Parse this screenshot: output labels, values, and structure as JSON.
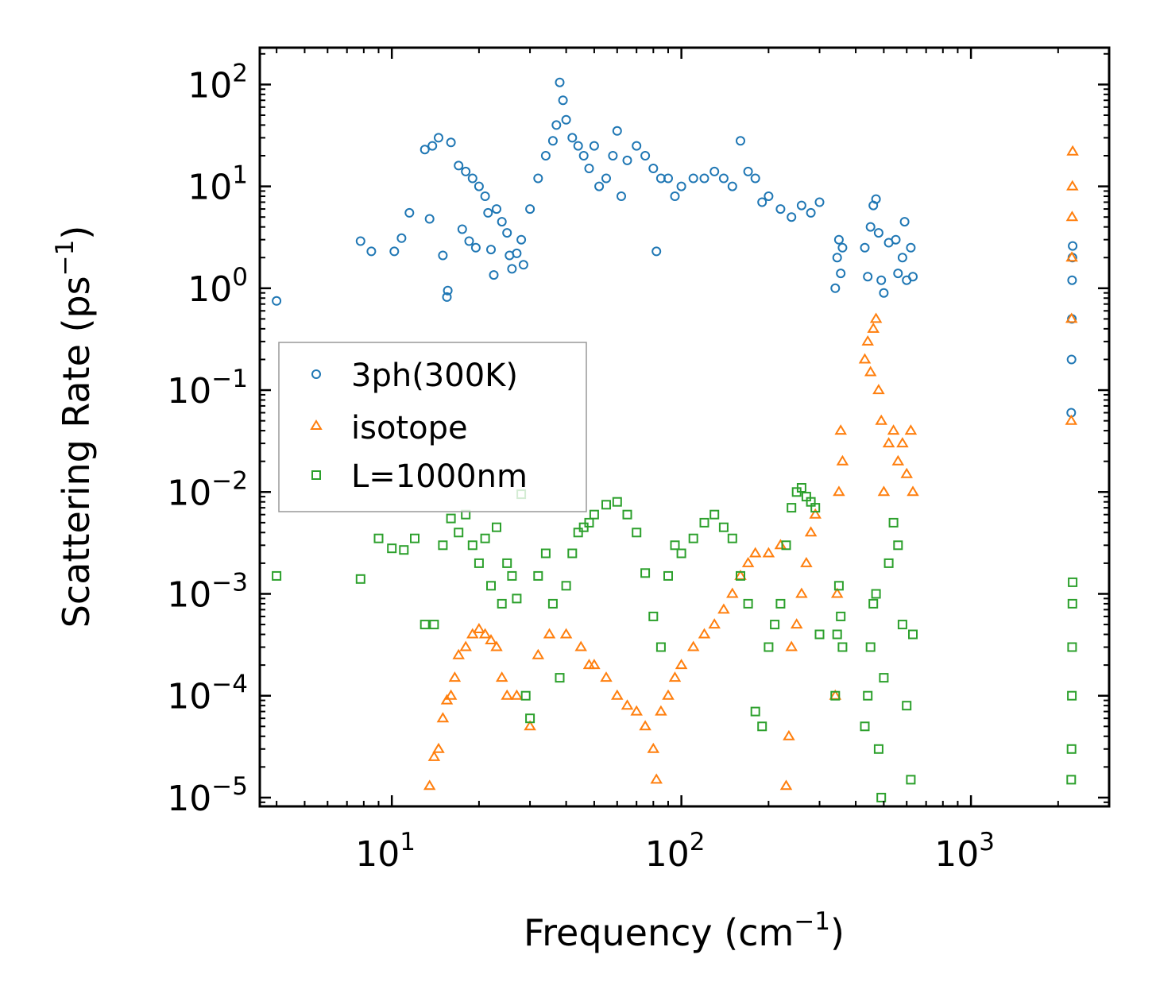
{
  "chart_data": {
    "type": "scatter",
    "title": "",
    "xlabel": "Frequency (cm",
    "xlabel_sup": "−1",
    "xlabel_end": ")",
    "ylabel": "Scattering Rate (ps",
    "ylabel_sup": "−1",
    "ylabel_end": ")",
    "xscale": "log",
    "yscale": "log",
    "xlim": [
      3.5,
      3000
    ],
    "ylim": [
      8.2e-06,
      230
    ],
    "x_ticks": [
      {
        "value": 10,
        "base": "10",
        "exp": "1"
      },
      {
        "value": 100,
        "base": "10",
        "exp": "2"
      },
      {
        "value": 1000,
        "base": "10",
        "exp": "3"
      }
    ],
    "y_ticks": [
      {
        "value": 100,
        "base": "10",
        "exp": "2"
      },
      {
        "value": 10,
        "base": "10",
        "exp": "1"
      },
      {
        "value": 1,
        "base": "10",
        "exp": "0"
      },
      {
        "value": 0.1,
        "base": "10",
        "exp": "−1"
      },
      {
        "value": 0.01,
        "base": "10",
        "exp": "−2"
      },
      {
        "value": 0.001,
        "base": "10",
        "exp": "−3"
      },
      {
        "value": 0.0001,
        "base": "10",
        "exp": "−4"
      },
      {
        "value": 1e-05,
        "base": "10",
        "exp": "−5"
      }
    ],
    "legend_position": "center-left",
    "series": [
      {
        "name": "3ph(300K)",
        "marker": "circle",
        "color": "#1f77b4",
        "points": [
          [
            4,
            0.75
          ],
          [
            7.8,
            2.9
          ],
          [
            8.5,
            2.3
          ],
          [
            10.2,
            2.3
          ],
          [
            10.8,
            3.1
          ],
          [
            11.5,
            5.5
          ],
          [
            13,
            23
          ],
          [
            13.5,
            4.8
          ],
          [
            13.8,
            25
          ],
          [
            14.5,
            30
          ],
          [
            15,
            2.1
          ],
          [
            15.5,
            0.82
          ],
          [
            15.6,
            0.95
          ],
          [
            16,
            27
          ],
          [
            17,
            16
          ],
          [
            17.5,
            3.8
          ],
          [
            18,
            14
          ],
          [
            18.5,
            2.9
          ],
          [
            19,
            12
          ],
          [
            19.5,
            2.5
          ],
          [
            20,
            10
          ],
          [
            21,
            8
          ],
          [
            21.5,
            5.5
          ],
          [
            22,
            2.4
          ],
          [
            22.5,
            1.35
          ],
          [
            23,
            6
          ],
          [
            24,
            4.5
          ],
          [
            25,
            3.5
          ],
          [
            25.5,
            2.1
          ],
          [
            26,
            1.55
          ],
          [
            27,
            2.2
          ],
          [
            28,
            3
          ],
          [
            28.5,
            1.7
          ],
          [
            30,
            6
          ],
          [
            32,
            12
          ],
          [
            34,
            20
          ],
          [
            36,
            28
          ],
          [
            37,
            40
          ],
          [
            38,
            105
          ],
          [
            39,
            70
          ],
          [
            40,
            45
          ],
          [
            42,
            30
          ],
          [
            44,
            25
          ],
          [
            46,
            20
          ],
          [
            48,
            15
          ],
          [
            50,
            25
          ],
          [
            52,
            10
          ],
          [
            55,
            12
          ],
          [
            58,
            20
          ],
          [
            60,
            35
          ],
          [
            62,
            8
          ],
          [
            65,
            18
          ],
          [
            70,
            25
          ],
          [
            75,
            20
          ],
          [
            80,
            15
          ],
          [
            82,
            2.3
          ],
          [
            85,
            12
          ],
          [
            90,
            12
          ],
          [
            95,
            8
          ],
          [
            100,
            10
          ],
          [
            110,
            12
          ],
          [
            120,
            12
          ],
          [
            130,
            14
          ],
          [
            140,
            12
          ],
          [
            150,
            10
          ],
          [
            160,
            28
          ],
          [
            170,
            14
          ],
          [
            180,
            12
          ],
          [
            190,
            7
          ],
          [
            200,
            8
          ],
          [
            220,
            6
          ],
          [
            240,
            5
          ],
          [
            260,
            6.5
          ],
          [
            280,
            5.5
          ],
          [
            300,
            7
          ],
          [
            340,
            1.0
          ],
          [
            345,
            2.0
          ],
          [
            350,
            3.0
          ],
          [
            355,
            1.4
          ],
          [
            360,
            2.5
          ],
          [
            430,
            2.5
          ],
          [
            440,
            1.3
          ],
          [
            450,
            4
          ],
          [
            460,
            6.5
          ],
          [
            470,
            7.5
          ],
          [
            480,
            3.5
          ],
          [
            490,
            1.2
          ],
          [
            500,
            0.9
          ],
          [
            520,
            2.8
          ],
          [
            550,
            3.0
          ],
          [
            560,
            1.4
          ],
          [
            580,
            2.0
          ],
          [
            590,
            4.5
          ],
          [
            600,
            1.2
          ],
          [
            620,
            2.5
          ],
          [
            630,
            1.3
          ],
          [
            2220,
            0.06
          ],
          [
            2225,
            0.2
          ],
          [
            2230,
            0.5
          ],
          [
            2235,
            1.2
          ],
          [
            2240,
            2.0
          ],
          [
            2245,
            2.6
          ]
        ]
      },
      {
        "name": "isotope",
        "marker": "triangle",
        "color": "#ff7f0e",
        "points": [
          [
            13.5,
            1.3e-05
          ],
          [
            14,
            2.5e-05
          ],
          [
            14.5,
            3e-05
          ],
          [
            15,
            6e-05
          ],
          [
            15.5,
            9e-05
          ],
          [
            16,
            0.0001
          ],
          [
            16.5,
            0.00015
          ],
          [
            17,
            0.00025
          ],
          [
            18,
            0.0003
          ],
          [
            19,
            0.0004
          ],
          [
            20,
            0.00045
          ],
          [
            21,
            0.0004
          ],
          [
            22,
            0.00035
          ],
          [
            23,
            0.0003
          ],
          [
            24,
            0.00015
          ],
          [
            25,
            0.0001
          ],
          [
            27,
            0.0001
          ],
          [
            30,
            5e-05
          ],
          [
            32,
            0.00025
          ],
          [
            35,
            0.0004
          ],
          [
            40,
            0.0004
          ],
          [
            45,
            0.0003
          ],
          [
            48,
            0.0002
          ],
          [
            50,
            0.0002
          ],
          [
            55,
            0.00015
          ],
          [
            60,
            0.0001
          ],
          [
            65,
            8e-05
          ],
          [
            70,
            7e-05
          ],
          [
            75,
            5e-05
          ],
          [
            80,
            3e-05
          ],
          [
            82,
            1.5e-05
          ],
          [
            85,
            7e-05
          ],
          [
            90,
            0.0001
          ],
          [
            95,
            0.00015
          ],
          [
            100,
            0.0002
          ],
          [
            110,
            0.0003
          ],
          [
            120,
            0.0004
          ],
          [
            130,
            0.0005
          ],
          [
            140,
            0.0007
          ],
          [
            150,
            0.001
          ],
          [
            160,
            0.0015
          ],
          [
            170,
            0.002
          ],
          [
            180,
            0.0025
          ],
          [
            200,
            0.0025
          ],
          [
            220,
            0.003
          ],
          [
            230,
            1.3e-05
          ],
          [
            235,
            4e-05
          ],
          [
            240,
            0.0003
          ],
          [
            250,
            0.0005
          ],
          [
            260,
            0.001
          ],
          [
            270,
            0.002
          ],
          [
            280,
            0.004
          ],
          [
            290,
            0.006
          ],
          [
            340,
            0.0001
          ],
          [
            345,
            0.001
          ],
          [
            350,
            0.01
          ],
          [
            355,
            0.04
          ],
          [
            360,
            0.02
          ],
          [
            430,
            0.2
          ],
          [
            440,
            0.3
          ],
          [
            450,
            0.15
          ],
          [
            460,
            0.4
          ],
          [
            470,
            0.5
          ],
          [
            480,
            0.1
          ],
          [
            490,
            0.05
          ],
          [
            500,
            0.01
          ],
          [
            520,
            0.03
          ],
          [
            540,
            0.04
          ],
          [
            560,
            0.02
          ],
          [
            580,
            0.03
          ],
          [
            600,
            0.015
          ],
          [
            620,
            0.04
          ],
          [
            630,
            0.01
          ],
          [
            2220,
            0.05
          ],
          [
            2225,
            0.5
          ],
          [
            2230,
            2.0
          ],
          [
            2235,
            5
          ],
          [
            2240,
            10
          ],
          [
            2245,
            22
          ]
        ]
      },
      {
        "name": "L=1000nm",
        "marker": "square",
        "color": "#2ca02c",
        "points": [
          [
            4,
            0.0015
          ],
          [
            7.8,
            0.0014
          ],
          [
            9,
            0.0035
          ],
          [
            10,
            0.0028
          ],
          [
            11,
            0.0027
          ],
          [
            12,
            0.0035
          ],
          [
            13,
            0.0005
          ],
          [
            14,
            0.0005
          ],
          [
            15,
            0.003
          ],
          [
            16,
            0.0055
          ],
          [
            17,
            0.004
          ],
          [
            18,
            0.006
          ],
          [
            19,
            0.003
          ],
          [
            20,
            0.002
          ],
          [
            21,
            0.0035
          ],
          [
            22,
            0.0012
          ],
          [
            23,
            0.0045
          ],
          [
            24,
            0.0008
          ],
          [
            25,
            0.002
          ],
          [
            26,
            0.0015
          ],
          [
            27,
            0.0009
          ],
          [
            28,
            0.0095
          ],
          [
            29,
            0.0001
          ],
          [
            30,
            6e-05
          ],
          [
            32,
            0.0015
          ],
          [
            34,
            0.0025
          ],
          [
            36,
            0.0008
          ],
          [
            38,
            0.00015
          ],
          [
            40,
            0.0012
          ],
          [
            42,
            0.0025
          ],
          [
            44,
            0.004
          ],
          [
            46,
            0.0045
          ],
          [
            48,
            0.005
          ],
          [
            50,
            0.006
          ],
          [
            55,
            0.0075
          ],
          [
            60,
            0.008
          ],
          [
            65,
            0.006
          ],
          [
            70,
            0.004
          ],
          [
            75,
            0.0016
          ],
          [
            80,
            0.0006
          ],
          [
            85,
            0.0003
          ],
          [
            90,
            0.0015
          ],
          [
            95,
            0.003
          ],
          [
            100,
            0.0025
          ],
          [
            110,
            0.0035
          ],
          [
            120,
            0.005
          ],
          [
            130,
            0.006
          ],
          [
            140,
            0.0045
          ],
          [
            150,
            0.0035
          ],
          [
            160,
            0.0015
          ],
          [
            170,
            0.0008
          ],
          [
            180,
            7e-05
          ],
          [
            190,
            5e-05
          ],
          [
            200,
            0.0003
          ],
          [
            210,
            0.0005
          ],
          [
            220,
            0.0008
          ],
          [
            230,
            0.003
          ],
          [
            240,
            0.007
          ],
          [
            250,
            0.01
          ],
          [
            260,
            0.011
          ],
          [
            270,
            0.009
          ],
          [
            280,
            0.008
          ],
          [
            290,
            0.007
          ],
          [
            300,
            0.0004
          ],
          [
            340,
            0.0001
          ],
          [
            345,
            0.0004
          ],
          [
            350,
            0.0012
          ],
          [
            355,
            0.0006
          ],
          [
            360,
            0.0003
          ],
          [
            430,
            5e-05
          ],
          [
            440,
            0.0001
          ],
          [
            450,
            0.0003
          ],
          [
            460,
            0.0008
          ],
          [
            470,
            0.001
          ],
          [
            480,
            3e-05
          ],
          [
            490,
            1e-05
          ],
          [
            500,
            0.00015
          ],
          [
            520,
            0.002
          ],
          [
            540,
            0.005
          ],
          [
            560,
            0.003
          ],
          [
            580,
            0.0005
          ],
          [
            600,
            8e-05
          ],
          [
            620,
            1.5e-05
          ],
          [
            630,
            0.0004
          ],
          [
            2220,
            1.5e-05
          ],
          [
            2225,
            3e-05
          ],
          [
            2230,
            0.0001
          ],
          [
            2235,
            0.0003
          ],
          [
            2240,
            0.0008
          ],
          [
            2245,
            0.0013
          ]
        ]
      }
    ]
  }
}
